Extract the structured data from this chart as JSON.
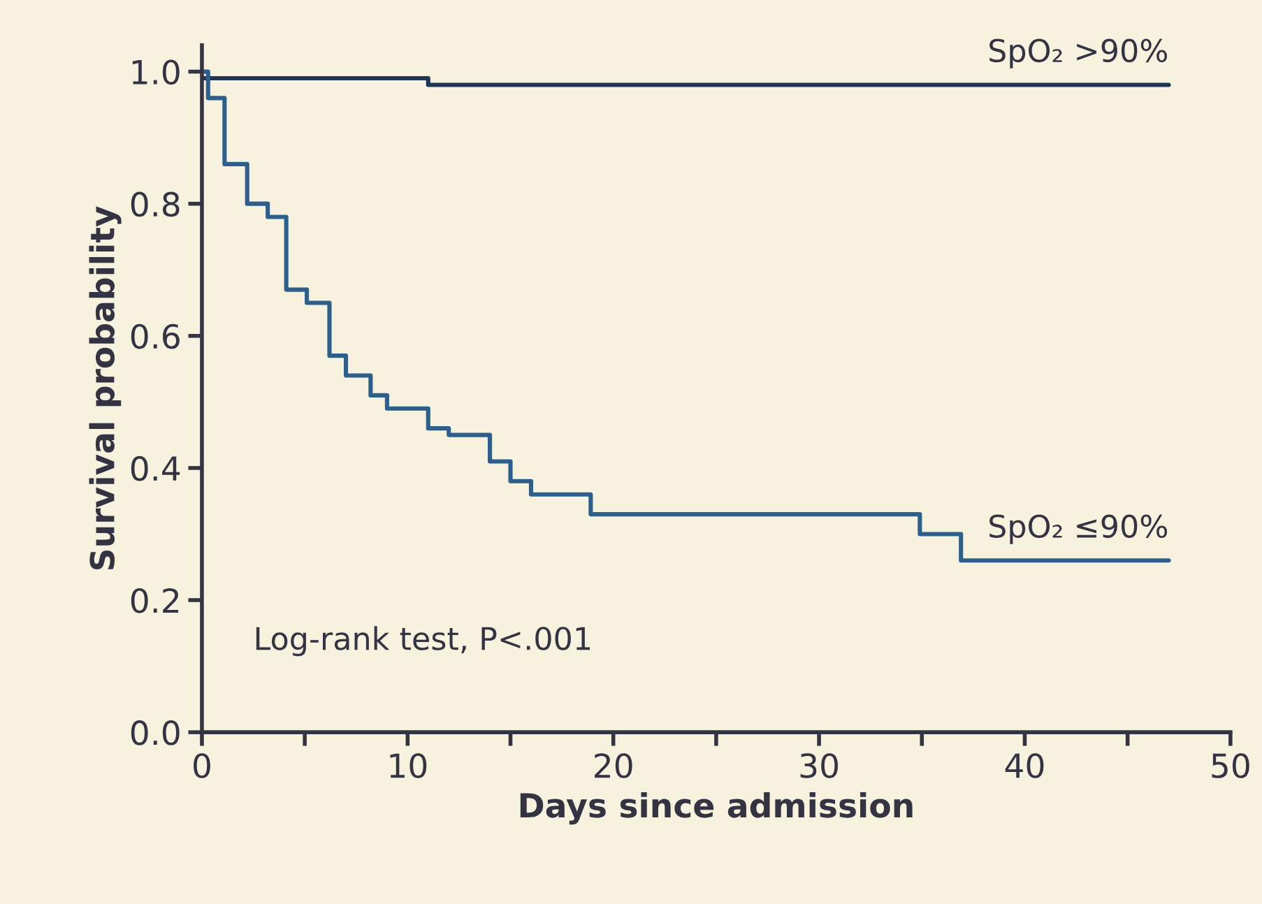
{
  "chart_data": {
    "type": "step",
    "xlabel": "Days since admission",
    "ylabel": "Survival probability",
    "xlim": [
      0,
      50
    ],
    "ylim": [
      0,
      1.04
    ],
    "xticks": [
      0,
      {
        "value": 5,
        "label": null
      },
      10,
      {
        "value": 15,
        "label": null
      },
      20,
      {
        "value": 25,
        "label": null
      },
      30,
      {
        "value": 35,
        "label": null
      },
      40,
      {
        "value": 45,
        "label": null
      },
      50
    ],
    "yticks": [
      {
        "value": 0,
        "label": "0.0"
      },
      0.2,
      0.4,
      0.6,
      0.8,
      {
        "value": 1,
        "label": "1.0"
      }
    ],
    "series": [
      {
        "name": "SpO₂ >90%",
        "color": "#1f3558",
        "x": [
          0,
          11,
          47
        ],
        "values": [
          0.99,
          0.98,
          0.98
        ]
      },
      {
        "name": "SpO₂ ≤90%",
        "color": "#2b5f8e",
        "x": [
          0,
          0.3,
          1.1,
          2.2,
          3.2,
          4.1,
          5.1,
          6.2,
          7.0,
          8.2,
          9.0,
          11.0,
          12.0,
          14.0,
          15.0,
          16.0,
          18.9,
          34.9,
          36.9,
          47
        ],
        "values": [
          1.0,
          0.96,
          0.86,
          0.8,
          0.78,
          0.67,
          0.65,
          0.57,
          0.54,
          0.51,
          0.49,
          0.46,
          0.45,
          0.41,
          0.38,
          0.36,
          0.33,
          0.3,
          0.26,
          0.26
        ]
      }
    ],
    "annotations": [
      "Log-rank test, P<.001"
    ],
    "grid": false,
    "legend": false
  }
}
